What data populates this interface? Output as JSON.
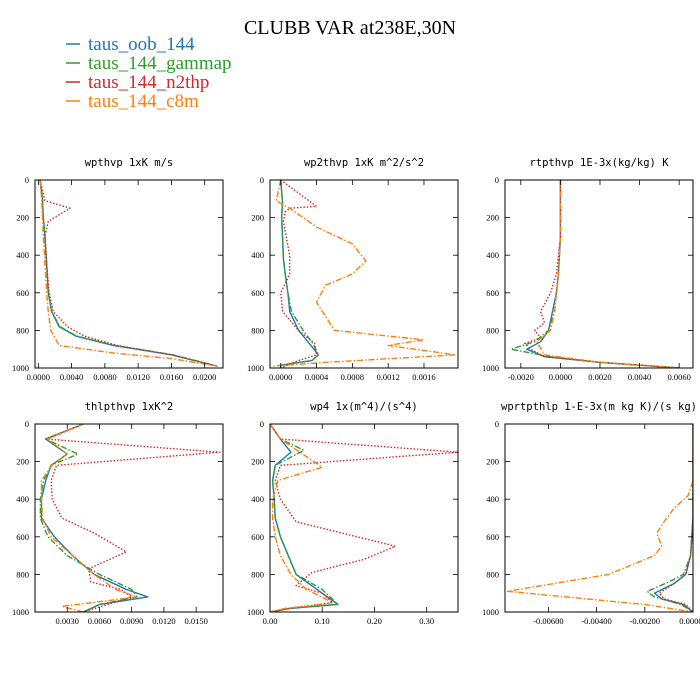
{
  "title": "CLUBB VAR at238E,30N",
  "legend": [
    {
      "label": "taus_oob_144",
      "color": "#1f77b4",
      "dash": "solid"
    },
    {
      "label": "taus_144_gammap",
      "color": "#2ca02c",
      "dash": "dashdot"
    },
    {
      "label": "taus_144_n2thp",
      "color": "#d62728",
      "dash": "dot"
    },
    {
      "label": "taus_144_c8m",
      "color": "#ff7f0e",
      "dash": "dashdot"
    }
  ],
  "chart_data": [
    {
      "type": "line",
      "title": "wpthvp  1xK m/s",
      "xlim": [
        -0.0004,
        0.0222
      ],
      "ylim": [
        0,
        1000
      ],
      "x_ticks": [
        0.0,
        0.004,
        0.008,
        0.012,
        0.016,
        0.02
      ],
      "x_tick_labels": [
        "0.0000",
        "0.0040",
        "0.0080",
        "0.0120",
        "0.0160",
        "0.0200"
      ],
      "y_ticks": [
        0,
        200,
        400,
        600,
        800,
        1000
      ],
      "y_tick_labels": [
        "0",
        "200",
        "400",
        "600",
        "800",
        "1000"
      ],
      "series": [
        {
          "name": "taus_oob_144",
          "x": [
            0.0002,
            0.0005,
            0.0006,
            0.0008,
            0.001,
            0.0012,
            0.0016,
            0.0025,
            0.0045,
            0.009,
            0.016,
            0.0215
          ],
          "y": [
            0,
            100,
            200,
            300,
            450,
            600,
            700,
            780,
            830,
            880,
            930,
            990
          ]
        },
        {
          "name": "taus_144_gammap",
          "x": [
            0.0002,
            0.0005,
            0.0006,
            0.0008,
            0.001,
            0.0012,
            0.0016,
            0.0026,
            0.0046,
            0.0092,
            0.0162,
            0.0215
          ],
          "y": [
            0,
            100,
            200,
            300,
            450,
            600,
            700,
            780,
            830,
            880,
            930,
            990
          ]
        },
        {
          "name": "taus_144_n2thp",
          "x": [
            0.0002,
            0.0008,
            0.0038,
            0.0012,
            0.0008,
            0.001,
            0.0013,
            0.0018,
            0.0035,
            0.0055,
            0.0095,
            0.016,
            0.0215
          ],
          "y": [
            0,
            110,
            150,
            220,
            300,
            450,
            600,
            700,
            780,
            830,
            880,
            930,
            990
          ]
        },
        {
          "name": "taus_144_c8m",
          "x": [
            0.0002,
            0.0004,
            0.0005,
            0.0006,
            0.0008,
            0.001,
            0.0012,
            0.0015,
            0.0025,
            0.009,
            0.016,
            0.0215
          ],
          "y": [
            0,
            100,
            200,
            300,
            450,
            600,
            700,
            800,
            880,
            920,
            950,
            990
          ]
        }
      ]
    },
    {
      "type": "line",
      "title": "wp2thvp  1xK m^2/s^2",
      "xlim": [
        -0.00012,
        0.00198
      ],
      "ylim": [
        0,
        1000
      ],
      "x_ticks": [
        0.0,
        0.0004,
        0.0008,
        0.0012,
        0.0016
      ],
      "x_tick_labels": [
        "0.0000",
        "0.0004",
        "0.0008",
        "0.0012",
        "0.0016"
      ],
      "y_ticks": [
        0,
        200,
        400,
        600,
        800,
        1000
      ],
      "y_tick_labels": [
        "0",
        "200",
        "400",
        "600",
        "800",
        "1000"
      ],
      "series": [
        {
          "name": "taus_oob_144",
          "x": [
            0.0,
            2e-05,
            1e-05,
            2e-05,
            3e-05,
            5e-05,
            8e-05,
            0.0001,
            0.0002,
            0.00032,
            0.00042,
            0.00035,
            0.0,
            0.0
          ],
          "y": [
            0,
            120,
            200,
            300,
            420,
            500,
            600,
            700,
            800,
            870,
            930,
            960,
            985,
            1000
          ]
        },
        {
          "name": "taus_144_gammap",
          "x": [
            0.0,
            2e-05,
            1e-05,
            2e-05,
            3e-05,
            5e-05,
            8e-05,
            0.00012,
            0.00025,
            0.00036,
            0.00042,
            0.00035,
            0.0,
            0.0
          ],
          "y": [
            0,
            120,
            200,
            300,
            420,
            500,
            600,
            700,
            800,
            870,
            930,
            960,
            985,
            1000
          ]
        },
        {
          "name": "taus_144_n2thp",
          "x": [
            0.0,
            0.0004,
            0.0001,
            5e-05,
            3e-05,
            6e-05,
            0.0001,
            0.0001,
            0.0,
            2e-05,
            0.0002,
            0.00038,
            0.0004,
            0.0002,
            0.0
          ],
          "y": [
            0,
            140,
            150,
            170,
            220,
            300,
            400,
            500,
            600,
            700,
            800,
            870,
            930,
            960,
            1000
          ]
        },
        {
          "name": "taus_144_c8m",
          "x": [
            0.0,
            -5e-05,
            0.0001,
            0.0004,
            0.0008,
            0.00095,
            0.0008,
            0.0005,
            0.0004,
            0.0006,
            0.0016,
            0.0012,
            0.00195,
            0.0005,
            -0.0001
          ],
          "y": [
            0,
            110,
            150,
            250,
            340,
            430,
            500,
            560,
            650,
            800,
            850,
            880,
            930,
            970,
            990
          ]
        }
      ]
    },
    {
      "type": "line",
      "title": "rtpthvp  1E-3x(kg/kg) K",
      "xlim": [
        -0.0028,
        0.0067
      ],
      "ylim": [
        0,
        1000
      ],
      "x_ticks": [
        -0.002,
        0.0,
        0.002,
        0.004,
        0.006
      ],
      "x_tick_labels": [
        "-0.0020",
        "0.0000",
        "0.0020",
        "0.0040",
        "0.0060"
      ],
      "y_ticks": [
        0,
        200,
        400,
        600,
        800,
        1000
      ],
      "y_tick_labels": [
        "0",
        "200",
        "400",
        "600",
        "800",
        "1000"
      ],
      "series": [
        {
          "name": "taus_oob_144",
          "x": [
            0.0,
            0.0,
            -0.0001,
            -0.0002,
            -0.0004,
            -0.0006,
            -0.001,
            -0.0017,
            -0.0008,
            0.002,
            0.006
          ],
          "y": [
            0,
            300,
            500,
            600,
            700,
            800,
            860,
            900,
            940,
            970,
            1000
          ]
        },
        {
          "name": "taus_144_gammap",
          "x": [
            0.0,
            0.0,
            -0.0001,
            -0.0002,
            -0.0003,
            -0.0006,
            -0.0013,
            -0.0025,
            -0.0005,
            0.002,
            0.006
          ],
          "y": [
            0,
            300,
            500,
            600,
            700,
            800,
            860,
            900,
            940,
            970,
            1000
          ]
        },
        {
          "name": "taus_144_n2thp",
          "x": [
            0.0,
            0.0,
            -0.0002,
            -0.0005,
            -0.001,
            -0.0008,
            -0.0013,
            -0.001,
            -0.0018,
            -0.0015,
            -0.0008,
            0.002,
            0.006
          ],
          "y": [
            0,
            300,
            500,
            600,
            700,
            760,
            800,
            840,
            870,
            900,
            940,
            970,
            1000
          ]
        },
        {
          "name": "taus_144_c8m",
          "x": [
            0.0,
            0.0,
            -0.0001,
            -0.0002,
            -0.0003,
            -0.0005,
            -0.0012,
            -0.0008,
            0.002,
            0.006
          ],
          "y": [
            0,
            300,
            500,
            600,
            700,
            800,
            860,
            930,
            970,
            1000
          ]
        }
      ]
    },
    {
      "type": "line",
      "title": "thlpthvp  1xK^2",
      "xlim": [
        0.0,
        0.0175
      ],
      "ylim": [
        0,
        1000
      ],
      "x_ticks": [
        0.003,
        0.006,
        0.009,
        0.012,
        0.015
      ],
      "x_tick_labels": [
        "0.0030",
        "0.0060",
        "0.0090",
        "0.0120",
        "0.0150"
      ],
      "y_ticks": [
        0,
        200,
        400,
        600,
        800,
        1000
      ],
      "y_tick_labels": [
        "0",
        "200",
        "400",
        "600",
        "800",
        "1000"
      ],
      "series": [
        {
          "name": "taus_oob_144",
          "x": [
            0.0045,
            0.001,
            0.003,
            0.0015,
            0.001,
            0.0006,
            0.0006,
            0.0018,
            0.0035,
            0.0055,
            0.0085,
            0.0105,
            0.006,
            0.0045
          ],
          "y": [
            0,
            80,
            160,
            220,
            300,
            400,
            500,
            600,
            700,
            800,
            880,
            920,
            960,
            1000
          ]
        },
        {
          "name": "taus_144_gammap",
          "x": [
            0.0045,
            0.001,
            0.004,
            0.0015,
            0.0008,
            0.0005,
            0.0005,
            0.0012,
            0.003,
            0.006,
            0.009,
            0.0095,
            0.006,
            0.0045
          ],
          "y": [
            0,
            80,
            160,
            220,
            300,
            400,
            500,
            600,
            700,
            800,
            880,
            920,
            960,
            1000
          ]
        },
        {
          "name": "taus_144_n2thp",
          "x": [
            0.0045,
            0.001,
            0.0172,
            0.002,
            0.0015,
            0.0016,
            0.0025,
            0.0055,
            0.0085,
            0.005,
            0.0052,
            0.008,
            0.009,
            0.0045
          ],
          "y": [
            0,
            80,
            150,
            220,
            300,
            400,
            500,
            580,
            680,
            770,
            840,
            880,
            920,
            1000
          ]
        },
        {
          "name": "taus_144_c8m",
          "x": [
            0.0045,
            0.0012,
            0.003,
            0.0016,
            0.0006,
            0.0006,
            0.0007,
            0.0015,
            0.0035,
            0.0055,
            0.0075,
            0.0095,
            0.0025,
            0.0045
          ],
          "y": [
            0,
            80,
            160,
            220,
            300,
            400,
            500,
            600,
            700,
            800,
            880,
            920,
            970,
            1000
          ]
        }
      ]
    },
    {
      "type": "line",
      "title": "wp4  1x(m^4)/(s^4)",
      "xlim": [
        0.0,
        0.36
      ],
      "ylim": [
        0,
        1000
      ],
      "x_ticks": [
        0.0,
        0.1,
        0.2,
        0.3
      ],
      "x_tick_labels": [
        "0.00",
        "0.10",
        "0.20",
        "0.30"
      ],
      "y_ticks": [
        0,
        200,
        400,
        600,
        800,
        1000
      ],
      "y_tick_labels": [
        "0",
        "200",
        "400",
        "600",
        "800",
        "1000"
      ],
      "series": [
        {
          "name": "taus_oob_144",
          "x": [
            0.0,
            0.02,
            0.04,
            0.01,
            0.005,
            0.008,
            0.01,
            0.02,
            0.035,
            0.05,
            0.09,
            0.13,
            0.04,
            0.0
          ],
          "y": [
            0,
            80,
            150,
            220,
            300,
            400,
            500,
            600,
            700,
            800,
            880,
            960,
            980,
            1000
          ]
        },
        {
          "name": "taus_144_gammap",
          "x": [
            0.0,
            0.02,
            0.065,
            0.01,
            0.005,
            0.008,
            0.01,
            0.02,
            0.035,
            0.05,
            0.1,
            0.13,
            0.04,
            0.0
          ],
          "y": [
            0,
            80,
            140,
            220,
            300,
            400,
            500,
            600,
            700,
            800,
            880,
            960,
            980,
            1000
          ]
        },
        {
          "name": "taus_144_n2thp",
          "x": [
            0.0,
            0.02,
            0.36,
            0.02,
            0.01,
            0.02,
            0.05,
            0.24,
            0.18,
            0.08,
            0.05,
            0.1,
            0.12,
            0.04,
            0.0
          ],
          "y": [
            0,
            80,
            150,
            220,
            300,
            400,
            520,
            650,
            720,
            790,
            860,
            900,
            950,
            980,
            1000
          ]
        },
        {
          "name": "taus_144_c8m",
          "x": [
            0.0,
            0.02,
            0.1,
            0.015,
            0.005,
            0.005,
            0.01,
            0.02,
            0.04,
            0.07,
            0.12,
            0.1,
            0.03,
            0.0
          ],
          "y": [
            0,
            80,
            230,
            300,
            400,
            500,
            600,
            700,
            800,
            880,
            950,
            960,
            980,
            1000
          ]
        }
      ]
    },
    {
      "type": "line",
      "title": "wprtpthlp  1-E-3x(m kg K)/(s kg)",
      "xlim": [
        -0.0078,
        0.0
      ],
      "ylim": [
        0,
        1000
      ],
      "x_ticks": [
        -0.006,
        -0.004,
        -0.002,
        0.0
      ],
      "x_tick_labels": [
        "-0.00600",
        "-0.00400",
        "-0.00200",
        "0.00000"
      ],
      "y_ticks": [
        0,
        200,
        400,
        600,
        800,
        1000
      ],
      "y_tick_labels": [
        "0",
        "200",
        "400",
        "600",
        "800",
        "1000"
      ],
      "series": [
        {
          "name": "taus_oob_144",
          "x": [
            0.0,
            0.0,
            -0.0001,
            -0.0003,
            -0.0008,
            -0.0016,
            -0.0013,
            -0.0004,
            0.0
          ],
          "y": [
            0,
            500,
            700,
            800,
            850,
            900,
            930,
            960,
            1000
          ]
        },
        {
          "name": "taus_144_gammap",
          "x": [
            0.0,
            0.0,
            -0.0001,
            -0.0004,
            -0.001,
            -0.0019,
            -0.0016,
            -0.0005,
            0.0
          ],
          "y": [
            0,
            500,
            700,
            800,
            840,
            890,
            920,
            960,
            1000
          ]
        },
        {
          "name": "taus_144_n2thp",
          "x": [
            0.0,
            0.0,
            -0.0001,
            -0.0003,
            -0.0008,
            -0.0014,
            -0.0012,
            -0.0003,
            0.0
          ],
          "y": [
            0,
            500,
            700,
            800,
            850,
            900,
            930,
            960,
            1000
          ]
        },
        {
          "name": "taus_144_c8m",
          "x": [
            0.0,
            0.0,
            -0.0002,
            -0.0008,
            -0.0012,
            -0.0015,
            -0.0013,
            -0.0016,
            -0.0035,
            -0.0077,
            -0.002,
            0.0
          ],
          "y": [
            0,
            300,
            380,
            450,
            520,
            580,
            650,
            700,
            800,
            890,
            960,
            1000
          ]
        }
      ]
    }
  ]
}
